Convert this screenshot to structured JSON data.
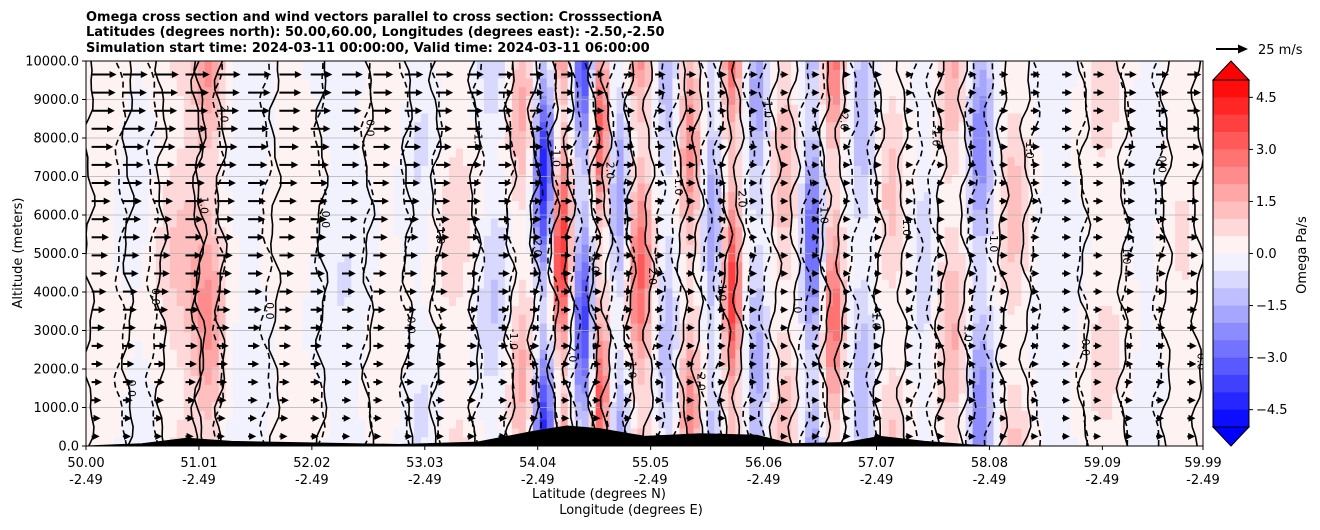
{
  "chart_data": {
    "type": "heatmap",
    "title_lines": [
      "Omega cross section and wind vectors parallel to cross section: CrosssectionA",
      "Latitudes (degrees north): 50.00,60.00, Longitudes (degrees east): -2.50,-2.50",
      "Simulation start time: 2024-03-11 00:00:00, Valid time: 2024-03-11 06:00:00"
    ],
    "ylabel": "Altitude (meters)",
    "xlabel_lines": [
      "Latitude (degrees N)",
      "Longitude (degrees E)"
    ],
    "ylim": [
      0,
      10000
    ],
    "y_ticks": [
      "0.0",
      "1000.0",
      "2000.0",
      "3000.0",
      "4000.0",
      "5000.0",
      "6000.0",
      "7000.0",
      "8000.0",
      "9000.0",
      "10000.0"
    ],
    "x_ticks": [
      {
        "lat": "50.00",
        "lon": "-2.49"
      },
      {
        "lat": "51.01",
        "lon": "-2.49"
      },
      {
        "lat": "52.02",
        "lon": "-2.49"
      },
      {
        "lat": "53.03",
        "lon": "-2.49"
      },
      {
        "lat": "54.04",
        "lon": "-2.49"
      },
      {
        "lat": "55.05",
        "lon": "-2.49"
      },
      {
        "lat": "56.06",
        "lon": "-2.49"
      },
      {
        "lat": "57.07",
        "lon": "-2.49"
      },
      {
        "lat": "58.08",
        "lon": "-2.49"
      },
      {
        "lat": "59.09",
        "lon": "-2.49"
      },
      {
        "lat": "59.99",
        "lon": "-2.49"
      }
    ],
    "xlim": [
      50.0,
      59.99
    ],
    "grid_horizontal": true,
    "colorbar": {
      "label": "Omega Pa/s",
      "range": [
        -5.0,
        5.0
      ],
      "ticks": [
        "−4.5",
        "−3.0",
        "−1.5",
        "0.0",
        "1.5",
        "3.0",
        "4.5"
      ],
      "extend": "both",
      "colormap": "bwr",
      "levels": 20
    },
    "quiver_key": {
      "label": "25 m/s",
      "speed": 25
    },
    "contour_levels_labeled": [
      "-1.0",
      "0.0",
      "1.0",
      "2.0"
    ],
    "omega_bands": [
      {
        "lat": 50.2,
        "w": 0.25,
        "v": 0.3
      },
      {
        "lat": 50.45,
        "w": 0.2,
        "v": -0.4
      },
      {
        "lat": 50.85,
        "w": 0.25,
        "v": 1.2
      },
      {
        "lat": 51.1,
        "w": 0.15,
        "v": 2.0
      },
      {
        "lat": 51.4,
        "w": 0.3,
        "v": -0.3
      },
      {
        "lat": 51.9,
        "w": 0.3,
        "v": 0.4
      },
      {
        "lat": 52.3,
        "w": 0.3,
        "v": -0.6
      },
      {
        "lat": 52.7,
        "w": 0.25,
        "v": 0.5
      },
      {
        "lat": 53.0,
        "w": 0.2,
        "v": -0.8
      },
      {
        "lat": 53.3,
        "w": 0.25,
        "v": 1.0
      },
      {
        "lat": 53.65,
        "w": 0.2,
        "v": -1.2
      },
      {
        "lat": 53.9,
        "w": 0.15,
        "v": 1.8
      },
      {
        "lat": 54.1,
        "w": 0.1,
        "v": -4.8
      },
      {
        "lat": 54.25,
        "w": 0.1,
        "v": 4.5
      },
      {
        "lat": 54.45,
        "w": 0.1,
        "v": -3.8
      },
      {
        "lat": 54.6,
        "w": 0.08,
        "v": 3.5
      },
      {
        "lat": 54.78,
        "w": 0.1,
        "v": -2.2
      },
      {
        "lat": 54.95,
        "w": 0.12,
        "v": 3.2
      },
      {
        "lat": 55.2,
        "w": 0.1,
        "v": -1.5
      },
      {
        "lat": 55.4,
        "w": 0.1,
        "v": 2.4
      },
      {
        "lat": 55.6,
        "w": 0.08,
        "v": -2.0
      },
      {
        "lat": 55.78,
        "w": 0.08,
        "v": 3.8
      },
      {
        "lat": 56.0,
        "w": 0.1,
        "v": -1.8
      },
      {
        "lat": 56.25,
        "w": 0.12,
        "v": 1.5
      },
      {
        "lat": 56.5,
        "w": 0.1,
        "v": -3.2
      },
      {
        "lat": 56.68,
        "w": 0.1,
        "v": 3.0
      },
      {
        "lat": 56.95,
        "w": 0.12,
        "v": -1.5
      },
      {
        "lat": 57.2,
        "w": 0.15,
        "v": 1.2
      },
      {
        "lat": 57.5,
        "w": 0.1,
        "v": -1.0
      },
      {
        "lat": 57.75,
        "w": 0.15,
        "v": 1.6
      },
      {
        "lat": 58.0,
        "w": 0.12,
        "v": -2.6
      },
      {
        "lat": 58.3,
        "w": 0.15,
        "v": 1.4
      },
      {
        "lat": 58.7,
        "w": 0.3,
        "v": -0.5
      },
      {
        "lat": 59.1,
        "w": 0.25,
        "v": 0.8
      },
      {
        "lat": 59.45,
        "w": 0.2,
        "v": -0.4
      },
      {
        "lat": 59.8,
        "w": 0.2,
        "v": 0.6
      }
    ],
    "terrain": [
      {
        "lat": 50.0,
        "h": 0
      },
      {
        "lat": 50.5,
        "h": 60
      },
      {
        "lat": 50.9,
        "h": 200
      },
      {
        "lat": 51.3,
        "h": 120
      },
      {
        "lat": 52.0,
        "h": 80
      },
      {
        "lat": 52.8,
        "h": 40
      },
      {
        "lat": 53.5,
        "h": 100
      },
      {
        "lat": 54.0,
        "h": 380
      },
      {
        "lat": 54.3,
        "h": 520
      },
      {
        "lat": 54.6,
        "h": 450
      },
      {
        "lat": 55.0,
        "h": 250
      },
      {
        "lat": 55.5,
        "h": 320
      },
      {
        "lat": 56.0,
        "h": 280
      },
      {
        "lat": 56.3,
        "h": 60
      },
      {
        "lat": 56.8,
        "h": 90
      },
      {
        "lat": 57.1,
        "h": 250
      },
      {
        "lat": 57.5,
        "h": 120
      },
      {
        "lat": 57.9,
        "h": 30
      },
      {
        "lat": 58.1,
        "h": 0
      },
      {
        "lat": 59.99,
        "h": 0
      }
    ],
    "annotation_labels": [
      "-1.0",
      "1.0",
      "2.0",
      "0.0"
    ]
  }
}
